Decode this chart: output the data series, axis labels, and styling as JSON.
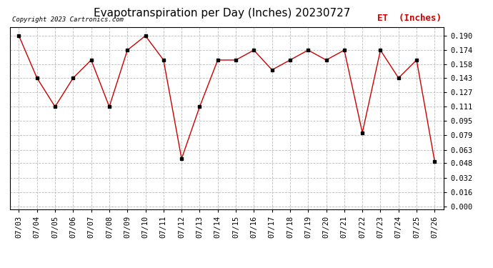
{
  "title": "Evapotranspiration per Day (Inches) 20230727",
  "copyright_text": "Copyright 2023 Cartronics.com",
  "legend_label": "ET  (Inches)",
  "dates": [
    "07/03",
    "07/04",
    "07/05",
    "07/06",
    "07/07",
    "07/08",
    "07/09",
    "07/10",
    "07/11",
    "07/12",
    "07/13",
    "07/14",
    "07/15",
    "07/16",
    "07/17",
    "07/18",
    "07/19",
    "07/20",
    "07/21",
    "07/22",
    "07/23",
    "07/24",
    "07/25",
    "07/26"
  ],
  "values": [
    0.19,
    0.143,
    0.111,
    0.143,
    0.163,
    0.111,
    0.174,
    0.19,
    0.163,
    0.053,
    0.111,
    0.163,
    0.163,
    0.174,
    0.152,
    0.163,
    0.174,
    0.163,
    0.174,
    0.082,
    0.174,
    0.143,
    0.163,
    0.05
  ],
  "yticks": [
    0.0,
    0.016,
    0.032,
    0.048,
    0.063,
    0.079,
    0.095,
    0.111,
    0.127,
    0.143,
    0.158,
    0.174,
    0.19
  ],
  "line_color": "#cc0000",
  "marker_color": "#000000",
  "background_color": "#ffffff",
  "grid_color": "#bbbbbb",
  "title_fontsize": 11,
  "tick_fontsize": 7.5,
  "copyright_fontsize": 6.5,
  "legend_fontsize": 9,
  "ymin": -0.003,
  "ymax": 0.2
}
